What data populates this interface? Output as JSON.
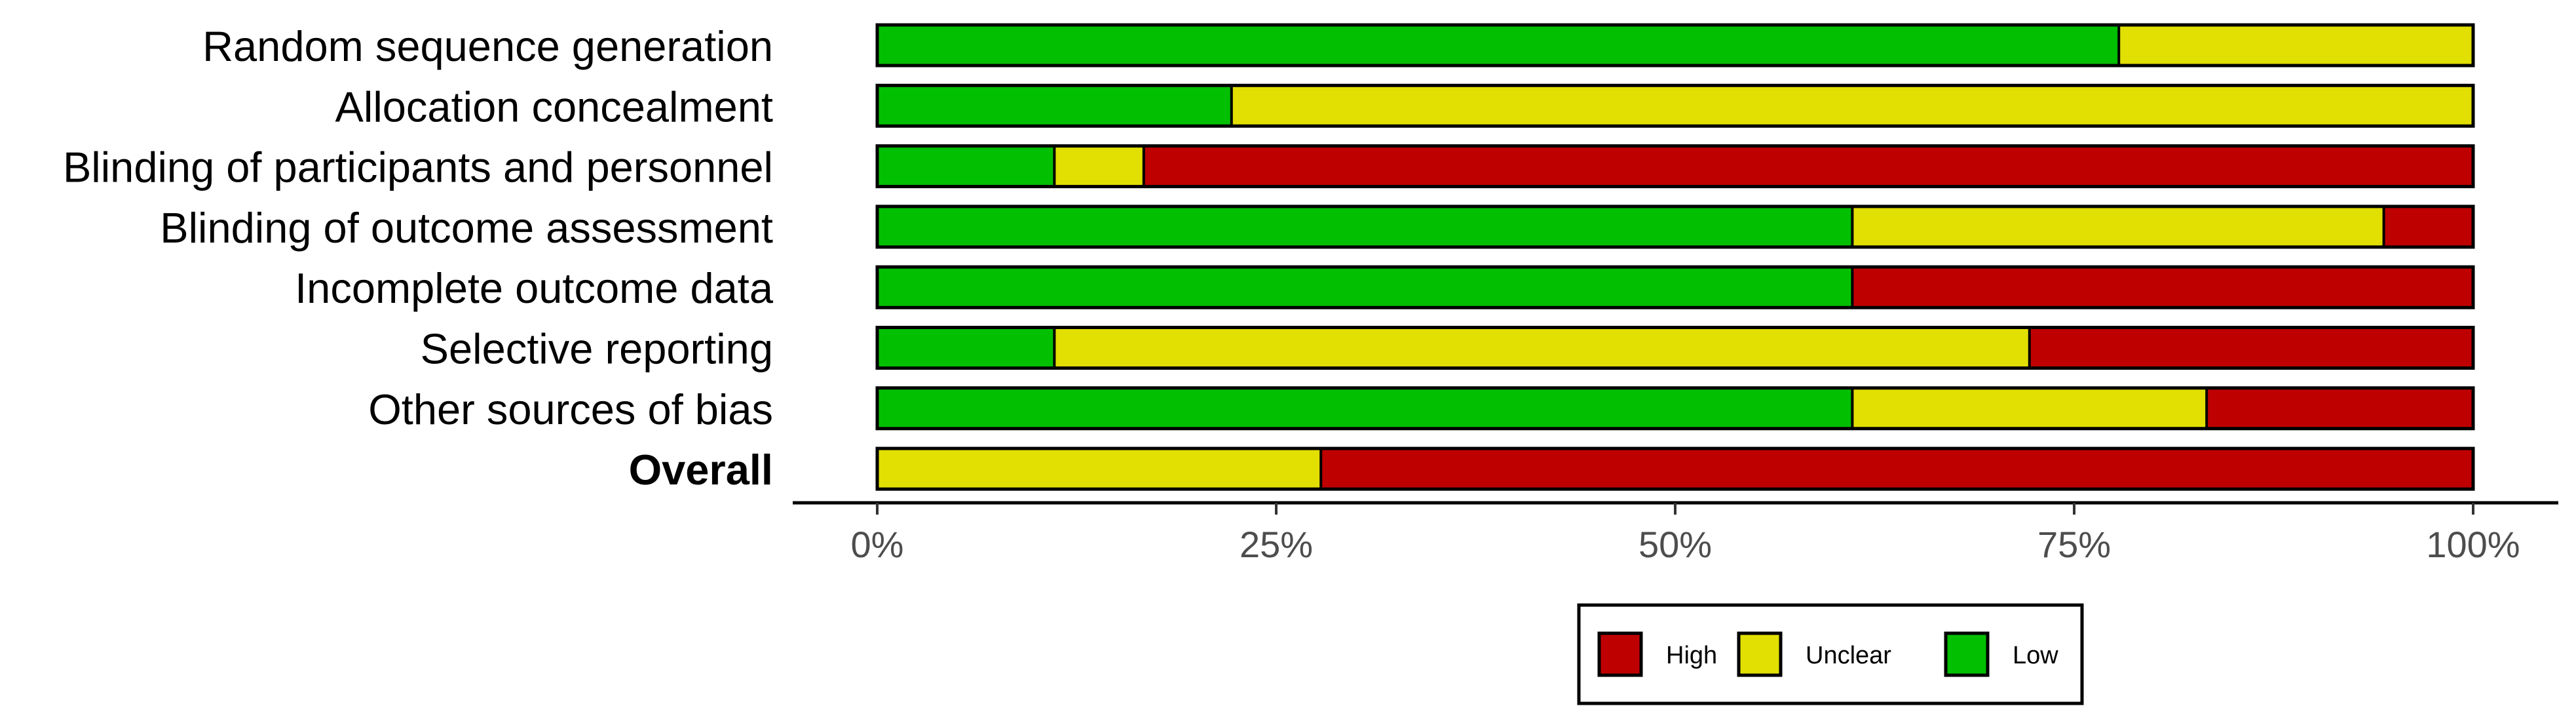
{
  "chart_data": {
    "type": "bar",
    "stacked": true,
    "orientation": "horizontal",
    "unit": "%",
    "categories": [
      "Random sequence generation",
      "Allocation concealment",
      "Blinding of participants and personnel",
      "Blinding of outcome assessment",
      "Incomplete outcome data",
      "Selective reporting",
      "Other sources of bias",
      "Overall"
    ],
    "bold_categories": [
      "Overall"
    ],
    "series": [
      {
        "name": "Low",
        "color": "#02bf02",
        "values": [
          77.8,
          22.2,
          11.1,
          61.1,
          61.1,
          11.1,
          61.1,
          0
        ]
      },
      {
        "name": "Unclear",
        "color": "#e2df02",
        "values": [
          22.2,
          77.8,
          5.6,
          33.3,
          0,
          61.1,
          22.2,
          27.8
        ]
      },
      {
        "name": "High",
        "color": "#bf0000",
        "values": [
          0,
          0,
          83.3,
          5.6,
          38.9,
          27.8,
          16.7,
          72.2
        ]
      }
    ],
    "xlim": [
      0,
      100
    ],
    "xticks": [
      "0%",
      "25%",
      "50%",
      "75%",
      "100%"
    ],
    "xtick_values": [
      0,
      25,
      50,
      75,
      100
    ],
    "legend": {
      "placement": "bottom-center",
      "order": [
        "High",
        "Unclear",
        "Low"
      ]
    },
    "grid": false
  }
}
